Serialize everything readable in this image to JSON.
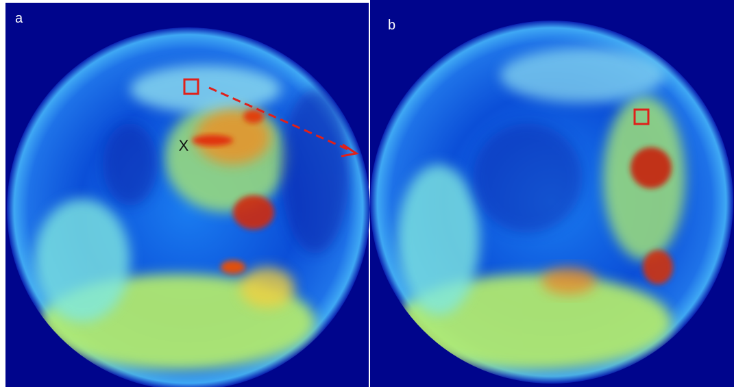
{
  "panels": [
    {
      "label": "a",
      "marker": "X"
    },
    {
      "label": "b"
    }
  ]
}
